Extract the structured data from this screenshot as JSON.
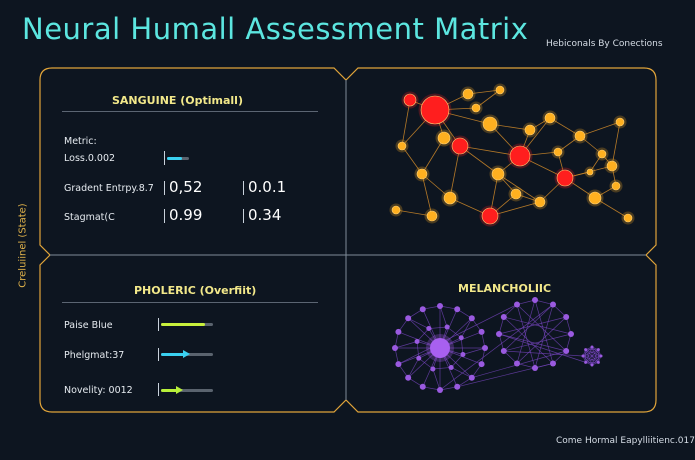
{
  "title": "Neural Humall Assessment Matrix",
  "subtitle": "Hebiconals By Conections",
  "side_label": "Creluiinel (State)",
  "footer": "Come Hormal Eapylliitienc.017",
  "quadrants": {
    "sanguine": {
      "heading": "SANGUINE (Optimall)",
      "metric_label": "Metric:",
      "loss_label": "Loss.0.002",
      "loss_level": 0.7,
      "rows": [
        {
          "label": "Gradent Entrpy.8.7",
          "v1": "0,52",
          "v2": "0.0.1"
        },
        {
          "label": "Stagmat(C",
          "v1": "0.99",
          "v2": "0.34"
        }
      ]
    },
    "pholeric": {
      "heading": "PHOLERIC (Overfiit)",
      "bars": [
        {
          "label": "Paise Blue",
          "level": 0.85,
          "color": "#c8f03c",
          "arrow": false
        },
        {
          "label": "Phelgmat:37",
          "level": 0.45,
          "color": "#3ad0f0",
          "arrow": true
        },
        {
          "label": "Novelity: 0012",
          "level": 0.3,
          "color": "#b8f03a",
          "arrow": true
        }
      ]
    },
    "melancholic": {
      "heading": "MELANCHOLIIC"
    }
  },
  "colors": {
    "frame": "#e0a43a",
    "accent_title": "#5ce6e0",
    "heading": "#f2e88a",
    "red_node": "#ff1e1e",
    "orange_node": "#ffb020",
    "purple_node": "#9a5ae0"
  }
}
